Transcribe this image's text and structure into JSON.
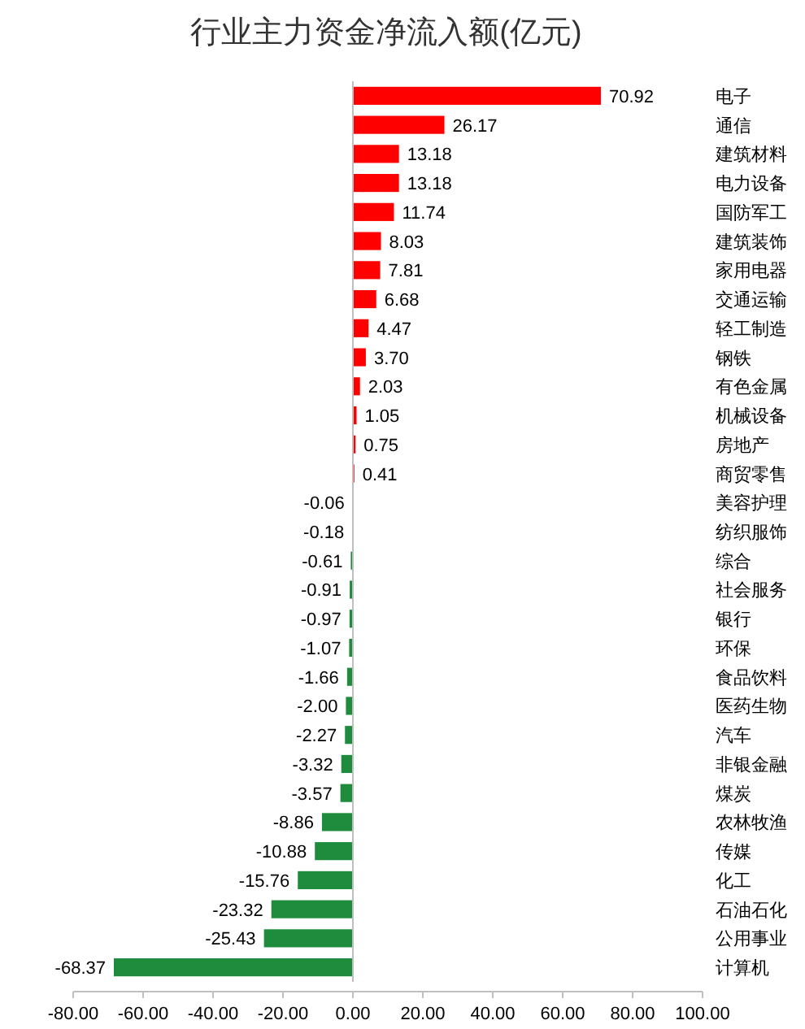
{
  "chart_data": {
    "type": "bar",
    "orientation": "horizontal",
    "title": "行业主力资金净流入额(亿元)",
    "categories": [
      "电子",
      "通信",
      "建筑材料",
      "电力设备",
      "国防军工",
      "建筑装饰",
      "家用电器",
      "交通运输",
      "轻工制造",
      "钢铁",
      "有色金属",
      "机械设备",
      "房地产",
      "商贸零售",
      "美容护理",
      "纺织服饰",
      "综合",
      "社会服务",
      "银行",
      "环保",
      "食品饮料",
      "医药生物",
      "汽车",
      "非银金融",
      "煤炭",
      "农林牧渔",
      "传媒",
      "化工",
      "石油石化",
      "公用事业",
      "计算机"
    ],
    "values": [
      70.92,
      26.17,
      13.18,
      13.18,
      11.74,
      8.03,
      7.81,
      6.68,
      4.47,
      3.7,
      2.03,
      1.05,
      0.75,
      0.41,
      -0.06,
      -0.18,
      -0.61,
      -0.91,
      -0.97,
      -1.07,
      -1.66,
      -2.0,
      -2.27,
      -3.32,
      -3.57,
      -8.86,
      -10.88,
      -15.76,
      -23.32,
      -25.43,
      -68.37
    ],
    "value_labels": [
      "70.92",
      "26.17",
      "13.18",
      "13.18",
      "11.74",
      "8.03",
      "7.81",
      "6.68",
      "4.47",
      "3.70",
      "2.03",
      "1.05",
      "0.75",
      "0.41",
      "-0.06",
      "-0.18",
      "-0.61",
      "-0.91",
      "-0.97",
      "-1.07",
      "-1.66",
      "-2.00",
      "-2.27",
      "-3.32",
      "-3.57",
      "-8.86",
      "-10.88",
      "-15.76",
      "-23.32",
      "-25.43",
      "-68.37"
    ],
    "colors": [
      "#ff0000",
      "#ff0000",
      "#ff0000",
      "#ff0000",
      "#ff0000",
      "#ff0000",
      "#ff0000",
      "#ff0000",
      "#ff0000",
      "#ff0000",
      "#ff0000",
      "#ff0000",
      "#ff0000",
      "#ff0000",
      "#1e8c3c",
      "#1e8c3c",
      "#1e8c3c",
      "#1e8c3c",
      "#1e8c3c",
      "#1e8c3c",
      "#1e8c3c",
      "#1e8c3c",
      "#1e8c3c",
      "#1e8c3c",
      "#1e8c3c",
      "#1e8c3c",
      "#1e8c3c",
      "#1e8c3c",
      "#1e8c3c",
      "#1e8c3c",
      "#1e8c3c"
    ],
    "xlim": [
      -80,
      100
    ],
    "xticks": [
      {
        "value": -80,
        "label": "-80.00"
      },
      {
        "value": -60,
        "label": "-60.00"
      },
      {
        "value": -40,
        "label": "-40.00"
      },
      {
        "value": -20,
        "label": "-20.00"
      },
      {
        "value": 0,
        "label": "0.00"
      },
      {
        "value": 20,
        "label": "20.00"
      },
      {
        "value": 40,
        "label": "40.00"
      },
      {
        "value": 60,
        "label": "60.00"
      },
      {
        "value": 80,
        "label": "80.00"
      },
      {
        "value": 100,
        "label": "100.00"
      }
    ]
  }
}
